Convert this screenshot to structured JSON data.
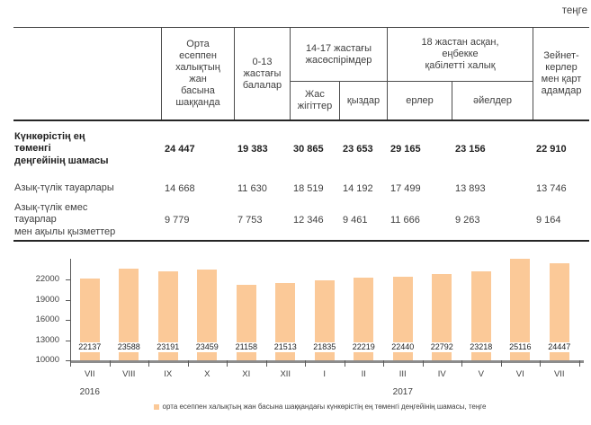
{
  "unit_label": "теңге",
  "table": {
    "headers": {
      "avg": "Орта\nесеппен\nхалықтың\nжан\nбасына\nшаққанда",
      "children": "0-13\nжастағы\nбалалар",
      "teen_group": "14-17 жастағы\nжасөспірімдер",
      "teen_boys": "Жас\nжігіттер",
      "teen_girls": "қыздар",
      "adult_group": "18 жастан асқан,\nеңбекке\nқабілетті халық",
      "adult_men": "ерлер",
      "adult_women": "әйелдер",
      "pensioners": "Зейнет-\nкерлер\nмен қарт\nадамдар"
    },
    "rows": [
      {
        "label": "Күнкөрістің ең\nтөменгі\nдеңгейінің шамасы",
        "bold": true,
        "values": [
          "24 447",
          "19 383",
          "30 865",
          "23 653",
          "29 165",
          "23 156",
          "22 910"
        ]
      },
      {
        "label": "Азық-түлік тауарлары",
        "bold": false,
        "values": [
          "14 668",
          "11 630",
          "18 519",
          "14 192",
          "17 499",
          "13 893",
          "13 746"
        ]
      },
      {
        "label": "Азық-түлік емес\nтауарлар\nмен ақылы қызметтер",
        "bold": false,
        "values": [
          "9 779",
          "7 753",
          "12 346",
          "9 461",
          "11 666",
          "9 263",
          "9 164"
        ]
      }
    ]
  },
  "chart_data": {
    "type": "bar",
    "title": "",
    "xlabel": "",
    "ylabel": "",
    "categories": [
      "VII",
      "VIII",
      "IX",
      "X",
      "XI",
      "XII",
      "I",
      "II",
      "III",
      "IV",
      "V",
      "VI",
      "VII"
    ],
    "values": [
      22137,
      23588,
      23191,
      23459,
      21158,
      21513,
      21835,
      22219,
      22440,
      22792,
      23218,
      25116,
      24447
    ],
    "year_labels": [
      {
        "text": "2016",
        "slot": 1
      },
      {
        "text": "2017",
        "slot": 9
      }
    ],
    "yticks": [
      10000,
      13000,
      16000,
      19000,
      22000
    ],
    "ylim": [
      10000,
      25100
    ],
    "grid": false,
    "legend_position": "bottom",
    "legend": "орта есеппен халықтың жан басына шаққандағы күнкөрістің ең төменгі деңгейінің шамасы, теңге",
    "bar_color": "#FBC998",
    "axis_color": "#8c8c8c",
    "text_color": "#404040"
  }
}
